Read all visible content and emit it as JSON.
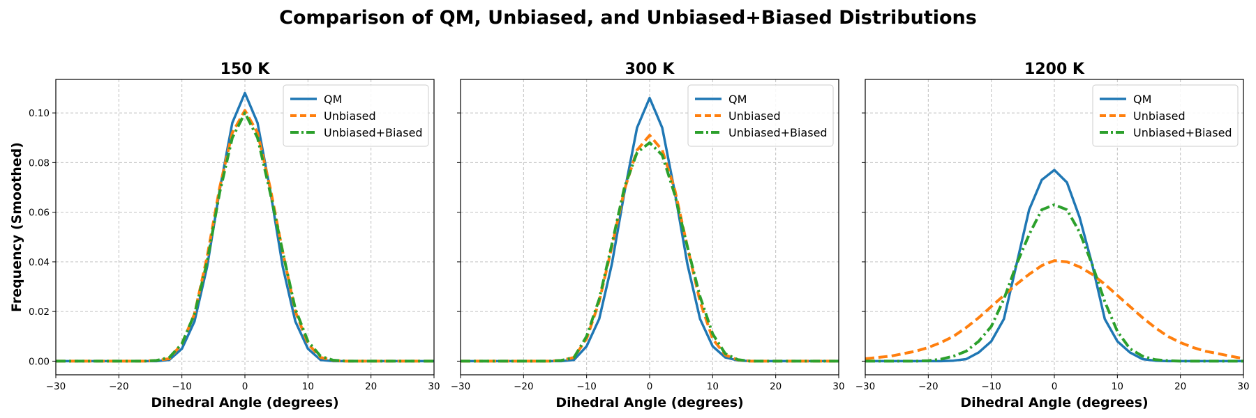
{
  "figure_title": "Comparison of QM, Unbiased, and Unbiased+Biased Distributions",
  "colors": {
    "QM": "#1f77b4",
    "Unbiased": "#ff7f0e",
    "Unbiased+Biased": "#2ca02c"
  },
  "chart_data": [
    {
      "type": "line",
      "title": "150 K",
      "xlabel": "Dihedral Angle (degrees)",
      "ylabel": "Frequency (Smoothed)",
      "xlim": [
        -30,
        30
      ],
      "ylim": [
        -0.0055,
        0.1135
      ],
      "xticks": [
        -30,
        -20,
        -10,
        0,
        10,
        20,
        30
      ],
      "yticks": [
        0.0,
        0.02,
        0.04,
        0.06,
        0.08,
        0.1
      ],
      "legend": "top-right",
      "grid": true,
      "x": [
        -30,
        -28,
        -26,
        -24,
        -22,
        -20,
        -18,
        -16,
        -14,
        -12,
        -10,
        -8,
        -6,
        -4,
        -2,
        0,
        2,
        4,
        6,
        8,
        10,
        12,
        14,
        16,
        18,
        20,
        22,
        24,
        26,
        28,
        30
      ],
      "series": [
        {
          "name": "QM",
          "style": "solid",
          "values": [
            0,
            0,
            0,
            0,
            0,
            0,
            0,
            0,
            0,
            0.0005,
            0.005,
            0.016,
            0.038,
            0.069,
            0.096,
            0.108,
            0.096,
            0.069,
            0.038,
            0.016,
            0.005,
            0.0005,
            0,
            0,
            0,
            0,
            0,
            0,
            0,
            0,
            0
          ]
        },
        {
          "name": "Unbiased",
          "style": "dashed",
          "values": [
            0,
            0,
            0,
            0,
            0,
            0,
            0,
            0,
            0.0003,
            0.001,
            0.007,
            0.019,
            0.042,
            0.07,
            0.092,
            0.101,
            0.092,
            0.07,
            0.044,
            0.02,
            0.007,
            0.0015,
            0.0003,
            0,
            0,
            0,
            0,
            0,
            0,
            0,
            0
          ]
        },
        {
          "name": "Unbiased+Biased",
          "style": "dashdot",
          "values": [
            0,
            0,
            0,
            0,
            0,
            0,
            0,
            0,
            0.0003,
            0.0015,
            0.007,
            0.019,
            0.04,
            0.068,
            0.09,
            0.1,
            0.09,
            0.068,
            0.044,
            0.021,
            0.008,
            0.002,
            0.0004,
            0,
            0,
            0,
            0,
            0,
            0,
            0,
            0
          ]
        }
      ]
    },
    {
      "type": "line",
      "title": "300 K",
      "xlabel": "Dihedral Angle (degrees)",
      "ylabel": "",
      "xlim": [
        -30,
        30
      ],
      "ylim": [
        -0.0055,
        0.1135
      ],
      "xticks": [
        -30,
        -20,
        -10,
        0,
        10,
        20,
        30
      ],
      "yticks": [
        0.0,
        0.02,
        0.04,
        0.06,
        0.08,
        0.1
      ],
      "legend": "top-right",
      "grid": true,
      "x": [
        -30,
        -28,
        -26,
        -24,
        -22,
        -20,
        -18,
        -16,
        -14,
        -12,
        -10,
        -8,
        -6,
        -4,
        -2,
        0,
        2,
        4,
        6,
        8,
        10,
        12,
        14,
        16,
        18,
        20,
        22,
        24,
        26,
        28,
        30
      ],
      "series": [
        {
          "name": "QM",
          "style": "solid",
          "values": [
            0,
            0,
            0,
            0,
            0,
            0,
            0,
            0,
            0,
            0.0005,
            0.006,
            0.017,
            0.039,
            0.068,
            0.094,
            0.106,
            0.094,
            0.068,
            0.039,
            0.017,
            0.006,
            0.0015,
            0.0003,
            0,
            0,
            0,
            0,
            0,
            0,
            0,
            0
          ]
        },
        {
          "name": "Unbiased",
          "style": "dashed",
          "values": [
            0,
            0,
            0,
            0,
            0,
            0,
            0,
            0,
            0.0003,
            0.0015,
            0.009,
            0.024,
            0.046,
            0.069,
            0.085,
            0.091,
            0.085,
            0.069,
            0.046,
            0.024,
            0.009,
            0.0025,
            0.0005,
            0,
            0,
            0,
            0,
            0,
            0,
            0,
            0
          ]
        },
        {
          "name": "Unbiased+Biased",
          "style": "dashdot",
          "values": [
            0,
            0,
            0,
            0,
            0,
            0,
            0,
            0,
            0.0003,
            0.0015,
            0.01,
            0.025,
            0.047,
            0.07,
            0.084,
            0.088,
            0.083,
            0.067,
            0.046,
            0.026,
            0.011,
            0.003,
            0.0006,
            0,
            0,
            0,
            0,
            0,
            0,
            0,
            0
          ]
        }
      ]
    },
    {
      "type": "line",
      "title": "1200 K",
      "xlabel": "Dihedral Angle (degrees)",
      "ylabel": "",
      "xlim": [
        -30,
        30
      ],
      "ylim": [
        -0.0055,
        0.1135
      ],
      "xticks": [
        -30,
        -20,
        -10,
        0,
        10,
        20,
        30
      ],
      "yticks": [
        0.0,
        0.02,
        0.04,
        0.06,
        0.08,
        0.1
      ],
      "legend": "top-right",
      "grid": true,
      "x": [
        -30,
        -28,
        -26,
        -24,
        -22,
        -20,
        -18,
        -16,
        -14,
        -12,
        -10,
        -8,
        -6,
        -4,
        -2,
        0,
        2,
        4,
        6,
        8,
        10,
        12,
        14,
        16,
        18,
        20,
        22,
        24,
        26,
        28,
        30
      ],
      "series": [
        {
          "name": "QM",
          "style": "solid",
          "values": [
            0,
            0,
            0,
            0,
            0,
            0,
            0,
            0.0002,
            0.0008,
            0.0035,
            0.008,
            0.017,
            0.039,
            0.061,
            0.073,
            0.077,
            0.072,
            0.058,
            0.039,
            0.017,
            0.008,
            0.0035,
            0.0008,
            0.0002,
            0,
            0,
            0,
            0,
            0,
            0,
            0
          ]
        },
        {
          "name": "Unbiased",
          "style": "dashed",
          "values": [
            0.001,
            0.0015,
            0.002,
            0.003,
            0.004,
            0.0055,
            0.0075,
            0.01,
            0.0135,
            0.0175,
            0.022,
            0.0265,
            0.031,
            0.035,
            0.0385,
            0.0405,
            0.04,
            0.038,
            0.035,
            0.031,
            0.0265,
            0.022,
            0.0175,
            0.0135,
            0.01,
            0.0075,
            0.0055,
            0.004,
            0.003,
            0.002,
            0.001
          ]
        },
        {
          "name": "Unbiased+Biased",
          "style": "dashdot",
          "values": [
            0,
            0,
            0,
            0,
            0,
            0.0002,
            0.0008,
            0.002,
            0.004,
            0.008,
            0.014,
            0.025,
            0.039,
            0.051,
            0.061,
            0.063,
            0.061,
            0.052,
            0.039,
            0.024,
            0.012,
            0.005,
            0.002,
            0.0006,
            0.0002,
            0,
            0,
            0,
            0,
            0,
            0
          ]
        }
      ]
    }
  ]
}
